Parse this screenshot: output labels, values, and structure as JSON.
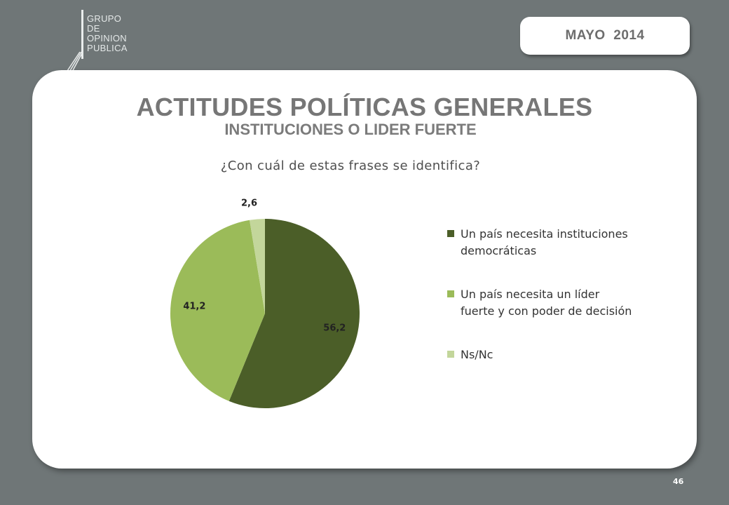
{
  "logo": {
    "lines": [
      "GRUPO",
      "DE",
      "OPINION",
      "PUBLICA"
    ]
  },
  "header": {
    "date": "MAYO  2014"
  },
  "slide": {
    "title": "ACTITUDES POLÍTICAS GENERALES",
    "subtitle": "INSTITUCIONES O LIDER FUERTE",
    "question": "¿Con cuál de estas frases se identifica?",
    "page_number": "46"
  },
  "chart_data": {
    "type": "pie",
    "title": "",
    "categories": [
      "Un país necesita instituciones democráticas",
      "Un país necesita un líder fuerte y con poder de decisión",
      "Ns/Nc"
    ],
    "values": [
      56.2,
      41.2,
      2.6
    ],
    "value_labels": [
      "56,2",
      "41,2",
      "2,6"
    ],
    "colors": [
      "#4b5e28",
      "#9bbb59",
      "#c3d69b"
    ],
    "start_angle": "12 o'clock",
    "direction": "clockwise",
    "legend_position": "right"
  },
  "legend": {
    "items": [
      {
        "label": "Un país necesita instituciones democráticas",
        "color": "#4b5e28"
      },
      {
        "label": "Un país necesita un líder fuerte y con poder de decisión",
        "color": "#9bbb59"
      },
      {
        "label": "Ns/Nc",
        "color": "#c3d69b"
      }
    ]
  }
}
